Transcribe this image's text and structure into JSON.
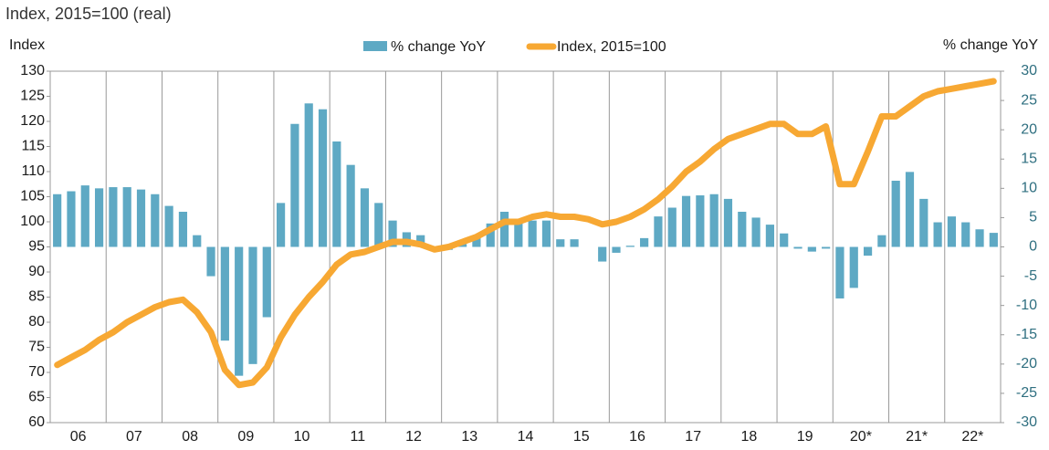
{
  "chart_data": {
    "type": "bar-line",
    "title": "Index, 2015=100 (real)",
    "y_label": "Index",
    "y2_label": "% change YoY",
    "categories": [
      null,
      "06",
      null,
      null,
      null,
      "07",
      null,
      null,
      null,
      "08",
      null,
      null,
      null,
      "09",
      null,
      null,
      null,
      "10",
      null,
      null,
      null,
      "11",
      null,
      null,
      null,
      "12",
      null,
      null,
      null,
      "13",
      null,
      null,
      null,
      "14",
      null,
      null,
      null,
      "15",
      null,
      null,
      null,
      "16",
      null,
      null,
      null,
      "17",
      null,
      null,
      null,
      "18",
      null,
      null,
      null,
      "19",
      null,
      null,
      null,
      "20*",
      null,
      null,
      null,
      "21*",
      null,
      null,
      null,
      "22*",
      null,
      null
    ],
    "series": [
      {
        "name": "% change YoY",
        "type": "bar",
        "axis": "y2",
        "color": "#5ea9c4",
        "values": [
          9,
          9.5,
          10.5,
          10,
          10.2,
          10.2,
          9.8,
          9,
          7,
          6,
          2,
          -5,
          -16,
          -22,
          -20,
          -12,
          7.5,
          21,
          24.5,
          23.5,
          18,
          14,
          10,
          7.5,
          4.5,
          2.5,
          2,
          -0.5,
          -0.5,
          0.5,
          1.5,
          4,
          6,
          4,
          4.5,
          4.5,
          1.3,
          1.3,
          0,
          -2.5,
          -1,
          0.2,
          1.5,
          5.2,
          6.7,
          8.7,
          8.8,
          9,
          8.2,
          6,
          5,
          3.8,
          2.3,
          -0.3,
          -0.8,
          -0.3,
          -8.8,
          -7,
          -1.5,
          2,
          11.3,
          12.8,
          8.2,
          4.2,
          5.2,
          4.2,
          3,
          2.4
        ]
      },
      {
        "name": "Index, 2015=100",
        "type": "line",
        "axis": "y",
        "color": "#f7a833",
        "values": [
          71.5,
          73,
          74.5,
          76.5,
          78,
          80,
          81.5,
          83,
          84,
          84.5,
          82,
          78,
          70.5,
          67.5,
          68,
          71,
          77,
          81.5,
          85,
          88,
          91.5,
          93.5,
          94,
          95,
          96,
          96,
          95.5,
          94.5,
          95,
          96,
          97,
          98.5,
          100,
          100,
          101,
          101.5,
          101,
          101,
          100.5,
          99.5,
          100,
          101,
          102.5,
          104.5,
          107,
          110,
          112,
          114.5,
          116.5,
          117.5,
          118.5,
          119.5,
          119.5,
          117.5,
          117.5,
          119,
          107.5,
          107.5,
          114,
          121,
          121,
          123,
          125,
          126,
          126.5,
          127,
          127.5,
          128
        ]
      }
    ],
    "ylim": [
      60,
      130
    ],
    "yticks": [
      60,
      65,
      70,
      75,
      80,
      85,
      90,
      95,
      100,
      105,
      110,
      115,
      120,
      125,
      130
    ],
    "y2lim": [
      -30,
      30
    ],
    "y2ticks": [
      -30,
      -25,
      -20,
      -15,
      -10,
      -5,
      0,
      5,
      10,
      15,
      20,
      25,
      30
    ],
    "grid": "x",
    "legend": "top"
  }
}
